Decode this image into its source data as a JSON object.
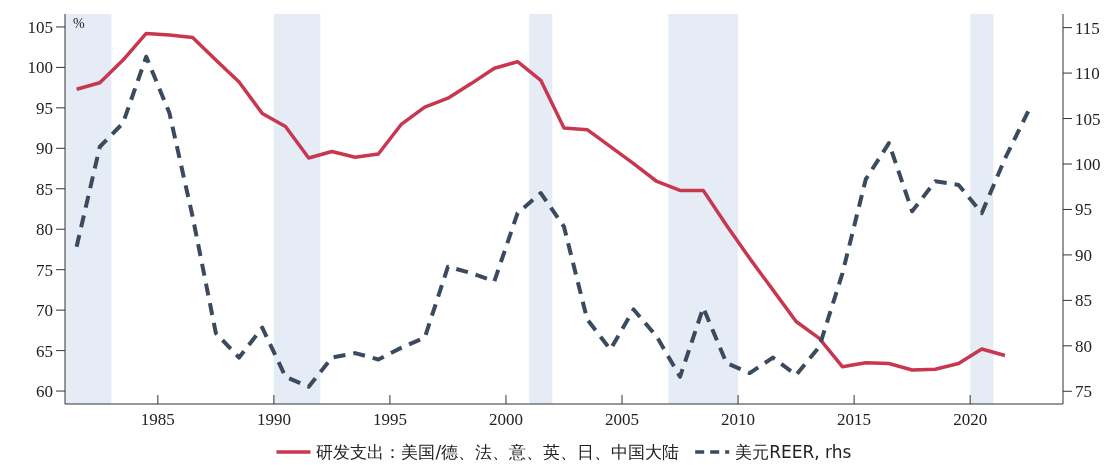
{
  "chart_data": {
    "type": "line",
    "annotations": [
      "%"
    ],
    "xlim": [
      1981,
      2024
    ],
    "xticks": [
      1985,
      1990,
      1995,
      2000,
      2005,
      2010,
      2015,
      2020
    ],
    "ylim": [
      58.4,
      106.6
    ],
    "yticks": [
      60,
      65,
      70,
      75,
      80,
      85,
      90,
      95,
      100,
      105
    ],
    "y2lim": [
      73.6,
      116.5
    ],
    "y2ticks": [
      75,
      80,
      85,
      90,
      95,
      100,
      105,
      110,
      115
    ],
    "legend": "bottom",
    "grid": false,
    "bands": [
      {
        "axis": "x",
        "from": 1981,
        "to": 1983,
        "color": "#e5ecf6"
      },
      {
        "axis": "x",
        "from": 1990,
        "to": 1992,
        "color": "#e5ecf6"
      },
      {
        "axis": "x",
        "from": 2001,
        "to": 2002,
        "color": "#e5ecf6"
      },
      {
        "axis": "x",
        "from": 2007,
        "to": 2010,
        "color": "#e5ecf6"
      },
      {
        "axis": "x",
        "from": 2020,
        "to": 2021,
        "color": "#e5ecf6"
      }
    ],
    "series": [
      {
        "name": "研发支出：美国/德、法、意、英、日、中国大陆",
        "color": "#c8374f",
        "line_style": "solid",
        "x": [
          1981.5,
          1982.5,
          1983.5,
          1984.5,
          1985.5,
          1986.5,
          1987.5,
          1988.5,
          1989.5,
          1990.5,
          1991.5,
          1992.5,
          1993.5,
          1994.5,
          1995.5,
          1996.5,
          1997.5,
          1998.5,
          1999.5,
          2000.5,
          2001.5,
          2002.5,
          2003.5,
          2004.5,
          2005.5,
          2006.5,
          2007.5,
          2008.5,
          2009.5,
          2010.5,
          2011.5,
          2012.5,
          2013.5,
          2014.5,
          2015.5,
          2016.5,
          2017.5,
          2018.5,
          2019.5,
          2020.5,
          2021.5
        ],
        "values": [
          97.3,
          98.1,
          100.9,
          104.2,
          104.0,
          103.7,
          100.9,
          98.2,
          94.3,
          92.7,
          88.8,
          89.6,
          88.9,
          89.3,
          93.0,
          95.1,
          96.2,
          98.0,
          99.9,
          100.7,
          98.4,
          92.5,
          92.3,
          90.2,
          88.1,
          85.9,
          84.8,
          84.8,
          80.5,
          76.4,
          72.5,
          68.6,
          66.5,
          63.0,
          63.5,
          63.4,
          62.6,
          62.7,
          63.4,
          65.2,
          64.4
        ]
      },
      {
        "name": "美元REER, rhs",
        "color": "#3b4a5e",
        "line_style": "dashed",
        "axis": "y2",
        "x": [
          1981.5,
          1982.5,
          1983.5,
          1984.5,
          1985.5,
          1986.5,
          1987.5,
          1988.5,
          1989.5,
          1990.5,
          1991.5,
          1992.5,
          1993.5,
          1994.5,
          1995.5,
          1996.5,
          1997.5,
          1998.5,
          1999.5,
          2000.5,
          2001.5,
          2002.5,
          2003.5,
          2004.5,
          2005.5,
          2006.5,
          2007.5,
          2008.5,
          2009.5,
          2010.5,
          2011.5,
          2012.5,
          2013.5,
          2014.5,
          2015.5,
          2016.5,
          2017.5,
          2018.5,
          2019.5,
          2020.5,
          2021.5,
          2022.5
        ],
        "values": [
          90.9,
          101.9,
          104.5,
          111.8,
          105.6,
          94.2,
          81.4,
          78.7,
          82.0,
          76.6,
          75.5,
          78.7,
          79.2,
          78.5,
          79.8,
          80.9,
          88.7,
          88.0,
          87.1,
          94.6,
          96.8,
          93.1,
          82.9,
          79.6,
          84.0,
          81.0,
          76.6,
          84.2,
          78.1,
          77.0,
          78.7,
          76.8,
          79.9,
          88.0,
          98.3,
          102.3,
          94.8,
          98.1,
          97.7,
          94.6,
          100.6,
          105.8
        ]
      }
    ]
  }
}
